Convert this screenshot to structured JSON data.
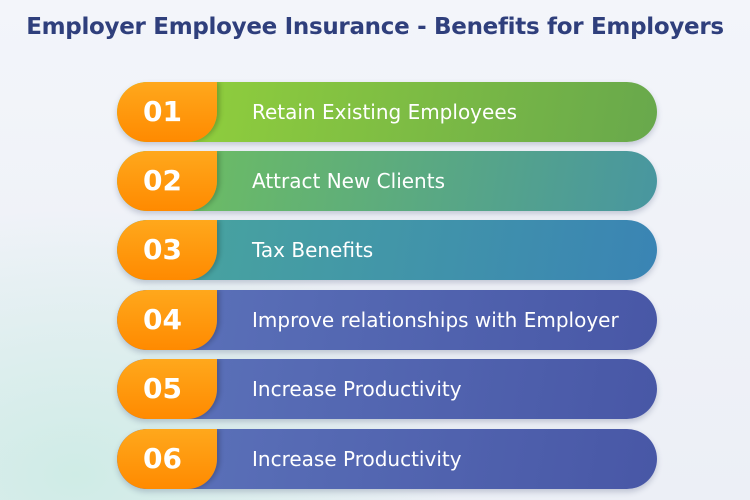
{
  "title": "Employer Employee Insurance - Benefits for Employers",
  "items": [
    {
      "number": "01",
      "label": "Retain Existing Employees",
      "color_start": "#96d43a",
      "color_end": "#68a84c"
    },
    {
      "number": "02",
      "label": "Attract New Clients",
      "color_start": "#72c25a",
      "color_end": "#4896a0"
    },
    {
      "number": "03",
      "label": "Tax Benefits",
      "color_start": "#4aa89c",
      "color_end": "#3a84b4"
    },
    {
      "number": "04",
      "label": "Improve relationships with Employer",
      "color_start": "#5d74bb",
      "color_end": "#4857a6"
    },
    {
      "number": "05",
      "label": "Increase Productivity",
      "color_start": "#5d74bb",
      "color_end": "#4857a6"
    },
    {
      "number": "06",
      "label": "Increase Productivity",
      "color_start": "#5d74bb",
      "color_end": "#4857a6"
    }
  ]
}
